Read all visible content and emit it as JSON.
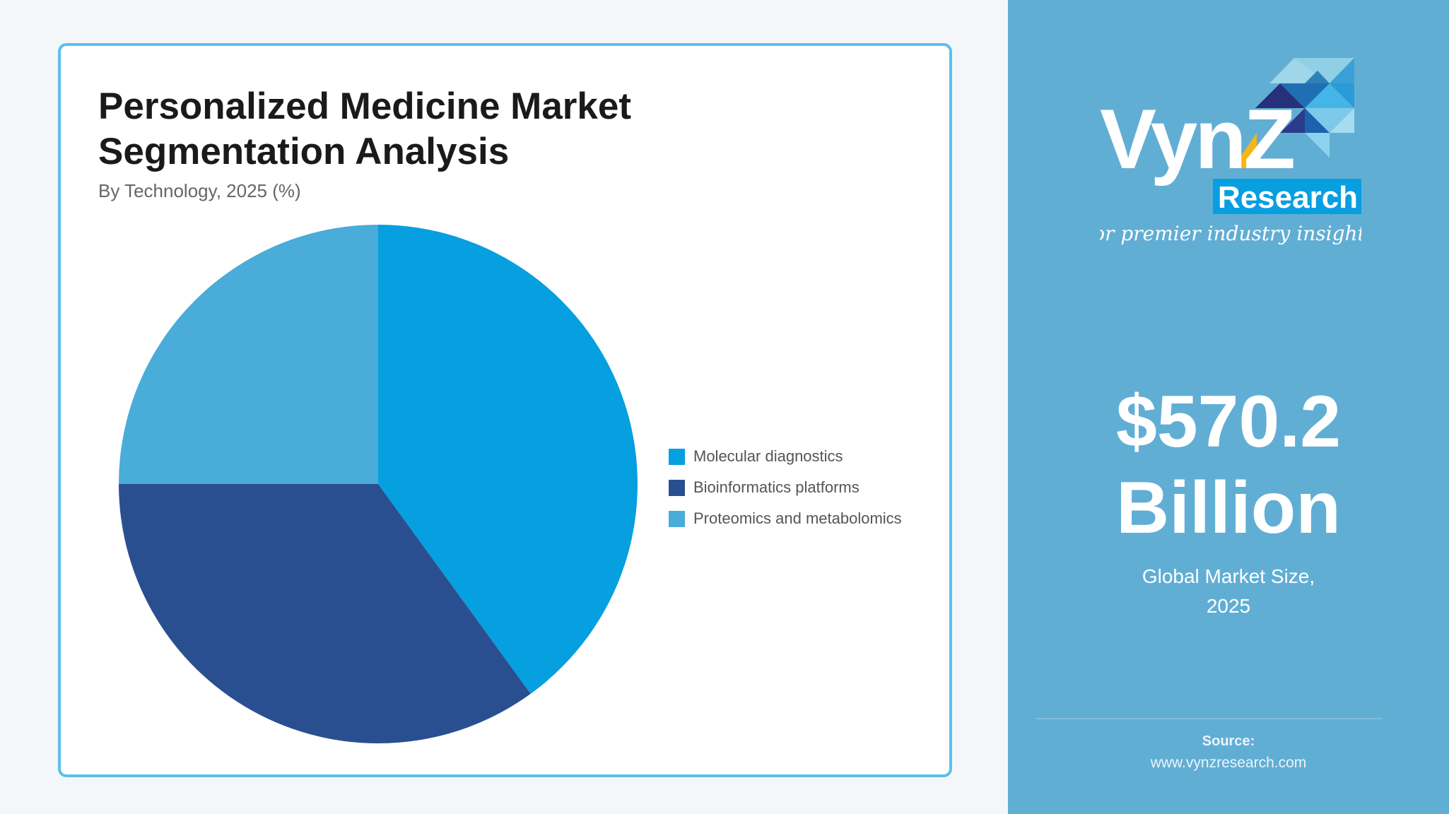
{
  "card": {
    "title": "Personalized Medicine Market Segmentation Analysis",
    "subtitle": "By Technology, 2025 (%)"
  },
  "legend": [
    {
      "label": "Molecular diagnostics",
      "color": "#069fdf"
    },
    {
      "label": "Bioinformatics platforms",
      "color": "#2a4f91"
    },
    {
      "label": "Proteomics and metabolomics",
      "color": "#49acd9"
    }
  ],
  "panel": {
    "logo": {
      "brand": "VynZ",
      "sub": "Research",
      "tagline": "for premier industry insights"
    },
    "value_line1": "$570.2",
    "value_line2": "Billion",
    "caption_line1": "Global Market Size,",
    "caption_line2": "2025",
    "source_label": "Source:",
    "source_url": "www.vynzresearch.com"
  },
  "colors": {
    "card_border": "#5bc0eb",
    "panel_bg": "#61aed4",
    "page_bg": "#f4f7fa"
  },
  "chart_data": {
    "type": "pie",
    "title": "Personalized Medicine Market Segmentation Analysis",
    "subtitle": "By Technology, 2025 (%)",
    "categories": [
      "Molecular diagnostics",
      "Bioinformatics platforms",
      "Proteomics and metabolomics"
    ],
    "values": [
      40,
      35,
      25
    ],
    "colors": [
      "#069fdf",
      "#2a4f91",
      "#49acd9"
    ],
    "start_angle": "12 o'clock, clockwise",
    "legend_position": "right",
    "data_labels": false
  }
}
